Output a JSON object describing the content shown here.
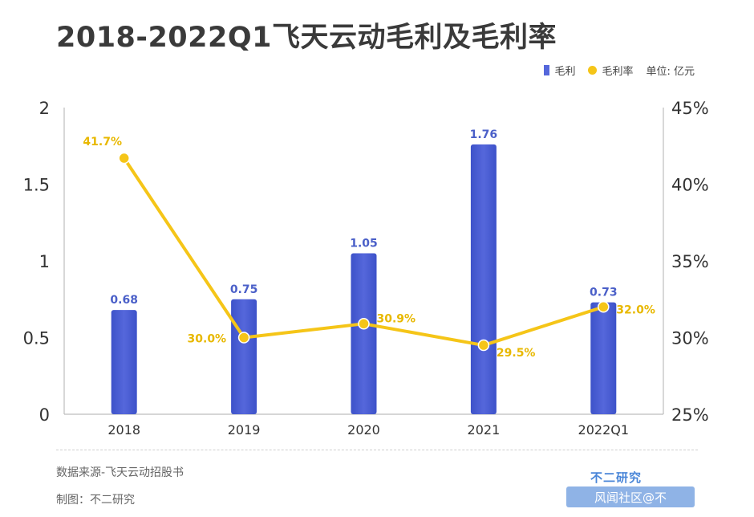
{
  "title": "2018-2022Q1飞天云动毛利及毛利率",
  "legend": {
    "bar_label": "毛利",
    "line_label": "毛利率",
    "unit": "单位: 亿元"
  },
  "footer": {
    "source": "数据来源-飞天云动招股书",
    "maker": "制图：不二研究",
    "brand": "不二研究",
    "watermark": "风闻社区@不"
  },
  "colors": {
    "bar": "#5567db",
    "line": "#f5c518",
    "bar_label": "#4a5fc8",
    "line_label": "#e8b800"
  },
  "chart_data": {
    "type": "bar",
    "categories": [
      "2018",
      "2019",
      "2020",
      "2021",
      "2022Q1"
    ],
    "series": [
      {
        "name": "毛利",
        "type": "bar",
        "axis": "left",
        "values": [
          0.68,
          0.75,
          1.05,
          1.76,
          0.73
        ],
        "labels": [
          "0.68",
          "0.75",
          "1.05",
          "1.76",
          "0.73"
        ]
      },
      {
        "name": "毛利率",
        "type": "line",
        "axis": "right",
        "values": [
          41.7,
          30.0,
          30.9,
          29.5,
          32.0
        ],
        "labels": [
          "41.7%",
          "30.0%",
          "30.9%",
          "29.5%",
          "32.0%"
        ]
      }
    ],
    "y_left": {
      "min": 0,
      "max": 2,
      "ticks": [
        "0",
        "0.5",
        "1",
        "1.5",
        "2"
      ]
    },
    "y_right": {
      "min": 25,
      "max": 45,
      "ticks": [
        "25%",
        "30%",
        "35%",
        "40%",
        "45%"
      ]
    },
    "grid": false,
    "legend_position": "top-right"
  }
}
